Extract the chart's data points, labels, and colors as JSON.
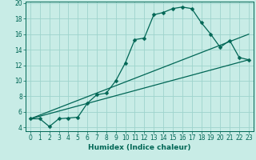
{
  "xlabel": "Humidex (Indice chaleur)",
  "bg_color": "#c8ece6",
  "grid_color": "#9dd4cc",
  "line_color": "#006655",
  "xlim": [
    -0.5,
    23.5
  ],
  "ylim": [
    3.5,
    20.2
  ],
  "xticks": [
    0,
    1,
    2,
    3,
    4,
    5,
    6,
    7,
    8,
    9,
    10,
    11,
    12,
    13,
    14,
    15,
    16,
    17,
    18,
    19,
    20,
    21,
    22,
    23
  ],
  "yticks": [
    4,
    6,
    8,
    10,
    12,
    14,
    16,
    18,
    20
  ],
  "series1_x": [
    0,
    1,
    2,
    3,
    4,
    5,
    6,
    7,
    8,
    9,
    10,
    11,
    12,
    13,
    14,
    15,
    16,
    17,
    18,
    19,
    20,
    21,
    22,
    23
  ],
  "series1_y": [
    5.1,
    5.1,
    4.1,
    5.1,
    5.2,
    5.3,
    7.1,
    8.2,
    8.4,
    10.0,
    12.3,
    15.3,
    15.5,
    18.5,
    18.8,
    19.3,
    19.5,
    19.3,
    17.5,
    16.0,
    14.3,
    15.2,
    13.0,
    12.7
  ],
  "series2_x": [
    0,
    23
  ],
  "series2_y": [
    5.1,
    12.7
  ],
  "series3_x": [
    0,
    23
  ],
  "series3_y": [
    5.1,
    16.0
  ],
  "markersize": 2.5,
  "linewidth": 0.9,
  "xlabel_fontsize": 6.5,
  "tick_fontsize": 5.5
}
